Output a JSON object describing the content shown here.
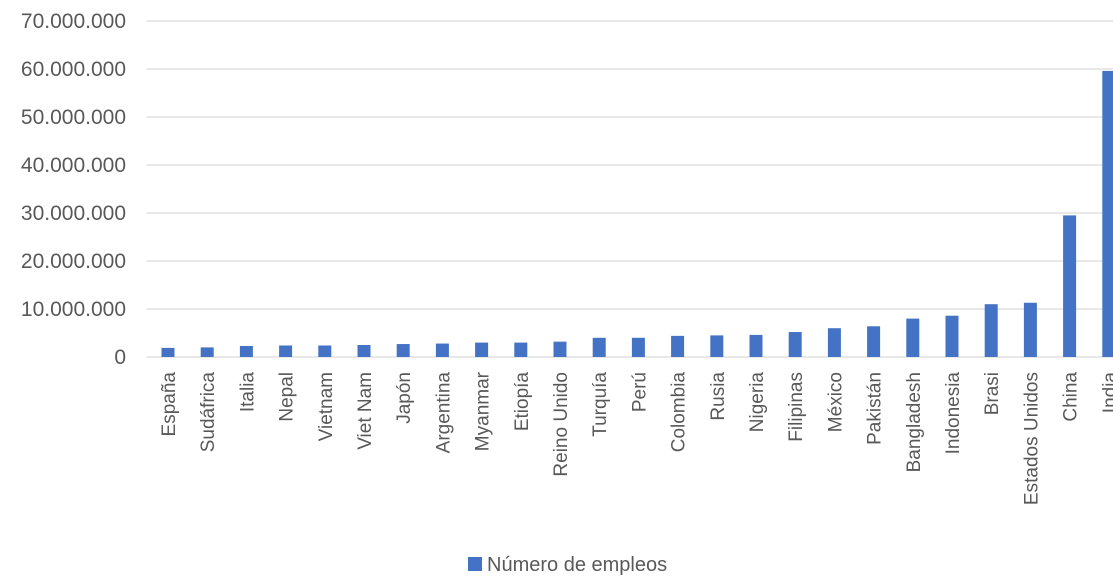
{
  "chart_data": {
    "type": "bar",
    "categories": [
      "España",
      "Sudáfrica",
      "Italia",
      "Nepal",
      "Vietnam",
      "Viet Nam",
      "Japón",
      "Argentina",
      "Myanmar",
      "Etiopía",
      "Reino Unido",
      "Turquía",
      "Perú",
      "Colombia",
      "Rusia",
      "Nigeria",
      "Filipinas",
      "México",
      "Pakistán",
      "Bangladesh",
      "Indonesia",
      "Brasi",
      "Estados Unidos",
      "China",
      "India"
    ],
    "series": [
      {
        "name": "Número de empleos",
        "values": [
          1900000,
          2000000,
          2300000,
          2400000,
          2400000,
          2500000,
          2700000,
          2800000,
          3000000,
          3000000,
          3200000,
          4000000,
          4000000,
          4400000,
          4500000,
          4600000,
          5200000,
          6000000,
          6400000,
          8000000,
          8600000,
          11000000,
          11300000,
          29500000,
          59600000
        ]
      }
    ],
    "ylim": [
      0,
      70000000
    ],
    "yticks": [
      {
        "value": 0,
        "label": "0"
      },
      {
        "value": 10000000,
        "label": "10.000.000"
      },
      {
        "value": 20000000,
        "label": "20.000.000"
      },
      {
        "value": 30000000,
        "label": "30.000.000"
      },
      {
        "value": 40000000,
        "label": "40.000.000"
      },
      {
        "value": 50000000,
        "label": "50.000.000"
      },
      {
        "value": 60000000,
        "label": "60.000.000"
      },
      {
        "value": 70000000,
        "label": "70.000.000"
      }
    ],
    "grid": true,
    "legend_position": "bottom",
    "colors": {
      "bar": "#4472C4",
      "grid": "#D9D9D9",
      "text": "#595959"
    }
  }
}
